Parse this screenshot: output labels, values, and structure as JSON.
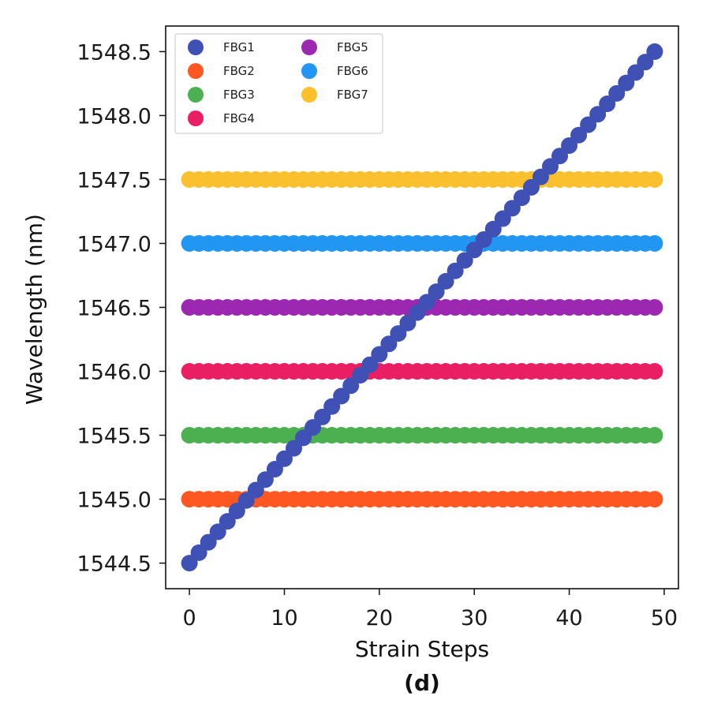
{
  "chart_data": {
    "type": "scatter",
    "xlabel": "Strain Steps",
    "ylabel": "Wavelength (nm)",
    "panel_label": "(d)",
    "xlim": [
      -2.5,
      51.5
    ],
    "ylim": [
      1544.3,
      1548.7
    ],
    "xticks": [
      0,
      10,
      20,
      30,
      40,
      50
    ],
    "xtick_labels": [
      "0",
      "10",
      "20",
      "30",
      "40",
      "50"
    ],
    "yticks": [
      1544.5,
      1545.0,
      1545.5,
      1546.0,
      1546.5,
      1547.0,
      1547.5,
      1548.0,
      1548.5
    ],
    "ytick_labels": [
      "1544.5",
      "1545.0",
      "1545.5",
      "1546.0",
      "1546.5",
      "1547.0",
      "1547.5",
      "1548.0",
      "1548.5"
    ],
    "grid": false,
    "legend_position": "top-left",
    "legend_columns": 2,
    "x": {
      "start": 0,
      "end": 49,
      "step": 1
    },
    "series": [
      {
        "name": "FBG1",
        "color": "#3f51b5",
        "start": 1544.5,
        "end": 1548.5
      },
      {
        "name": "FBG2",
        "color": "#ff5722",
        "constant": 1545.0
      },
      {
        "name": "FBG3",
        "color": "#4caf50",
        "constant": 1545.5
      },
      {
        "name": "FBG4",
        "color": "#e91e63",
        "constant": 1546.0
      },
      {
        "name": "FBG5",
        "color": "#9c27b0",
        "constant": 1546.5
      },
      {
        "name": "FBG6",
        "color": "#2196f3",
        "constant": 1547.0
      },
      {
        "name": "FBG7",
        "color": "#fbc02d",
        "constant": 1547.5
      }
    ],
    "draw_order": [
      "FBG2",
      "FBG3",
      "FBG4",
      "FBG5",
      "FBG6",
      "FBG7",
      "FBG1"
    ]
  }
}
